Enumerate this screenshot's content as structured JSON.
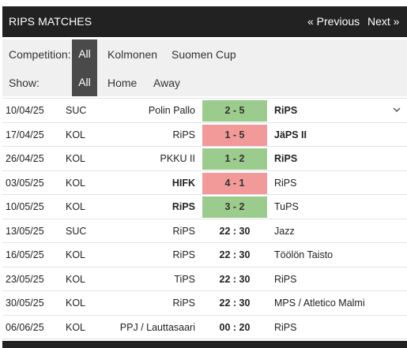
{
  "header": {
    "title": "RIPS MATCHES",
    "prev_label": "« Previous",
    "next_label": "Next »"
  },
  "filters": {
    "competition_label": "Competition:",
    "competition_options": [
      "All",
      "Kolmonen",
      "Suomen Cup"
    ],
    "show_label": "Show:",
    "show_options": [
      "All",
      "Home",
      "Away"
    ]
  },
  "matches": [
    {
      "date": "10/04/25",
      "comp": "SUC",
      "home": "Polin Pallo",
      "score": "2 - 5",
      "away": "RiPS",
      "result": "win",
      "bold": "away"
    },
    {
      "date": "17/04/25",
      "comp": "KOL",
      "home": "RiPS",
      "score": "1 - 5",
      "away": "JäPS II",
      "result": "loss",
      "bold": "away"
    },
    {
      "date": "26/04/25",
      "comp": "KOL",
      "home": "PKKU II",
      "score": "1 - 2",
      "away": "RiPS",
      "result": "win",
      "bold": "away"
    },
    {
      "date": "03/05/25",
      "comp": "KOL",
      "home": "HIFK",
      "score": "4 - 1",
      "away": "RiPS",
      "result": "loss",
      "bold": "home"
    },
    {
      "date": "10/05/25",
      "comp": "KOL",
      "home": "RiPS",
      "score": "3 - 2",
      "away": "TuPS",
      "result": "win",
      "bold": "home"
    },
    {
      "date": "13/05/25",
      "comp": "SUC",
      "home": "RiPS",
      "score": "22 : 30",
      "away": "Jazz",
      "result": "time",
      "bold": "none"
    },
    {
      "date": "16/05/25",
      "comp": "KOL",
      "home": "RiPS",
      "score": "22 : 30",
      "away": "Töölön Taisto",
      "result": "time",
      "bold": "none"
    },
    {
      "date": "23/05/25",
      "comp": "KOL",
      "home": "TiPS",
      "score": "22 : 30",
      "away": "RiPS",
      "result": "time",
      "bold": "none"
    },
    {
      "date": "30/05/25",
      "comp": "KOL",
      "home": "RiPS",
      "score": "22 : 30",
      "away": "MPS / Atletico Malmi",
      "result": "time",
      "bold": "none"
    },
    {
      "date": "06/06/25",
      "comp": "KOL",
      "home": "PPJ / Lauttasaari",
      "score": "00 : 20",
      "away": "RiPS",
      "result": "time",
      "bold": "none"
    }
  ],
  "icons": {
    "expand": "chevron-down-icon"
  },
  "colors": {
    "win": "#9ccc8d",
    "loss": "#f29a9a",
    "header": "#222222",
    "active_filter": "#4a4a4a"
  }
}
